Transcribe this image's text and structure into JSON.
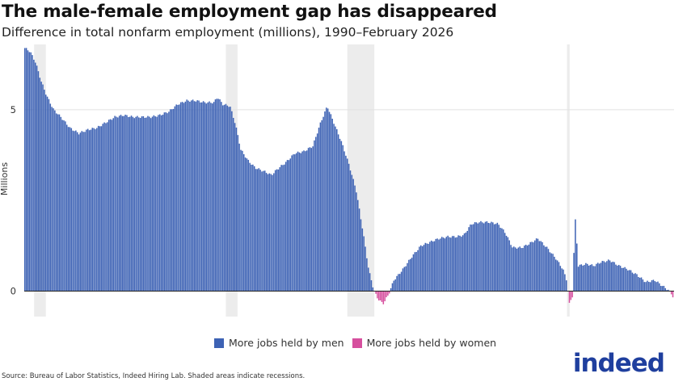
{
  "title": "The male-female employment gap has disappeared",
  "subtitle": "Difference in total nonfarm employment (millions), 1990–February 2026",
  "source": "Source: Bureau of Labor Statistics, Indeed Hiring Lab. Shaded areas indicate recessions.",
  "logo": "indeed",
  "colors": {
    "men": "#3d62b4",
    "women": "#d64f9e",
    "recession": "#ececec",
    "grid": "#e2e2e2"
  },
  "chart_data": {
    "type": "bar",
    "ylabel": "Millions",
    "ylim": [
      -0.7,
      6.8
    ],
    "yticks": [
      0,
      5
    ],
    "xlim": [
      1990.0,
      2026.1
    ],
    "xticks": [
      1993,
      1997,
      2001,
      2005,
      2009,
      2013,
      2017,
      2021,
      2025
    ],
    "grid": "horizontal",
    "legend_position": "bottom-center",
    "legend": [
      {
        "label": "More jobs held by men",
        "color_key": "men"
      },
      {
        "label": "More jobs held by women",
        "color_key": "women"
      }
    ],
    "recessions": [
      [
        1990.55,
        1991.2
      ],
      [
        2001.2,
        2001.85
      ],
      [
        2007.95,
        2009.45
      ],
      [
        2020.15,
        2020.3
      ]
    ],
    "series_anchors": [
      [
        1990.0,
        6.7
      ],
      [
        1990.3,
        6.6
      ],
      [
        1990.6,
        6.3
      ],
      [
        1990.9,
        5.8
      ],
      [
        1991.2,
        5.4
      ],
      [
        1991.6,
        5.0
      ],
      [
        1992.0,
        4.8
      ],
      [
        1992.5,
        4.5
      ],
      [
        1993.0,
        4.35
      ],
      [
        1993.5,
        4.45
      ],
      [
        1994.0,
        4.5
      ],
      [
        1994.5,
        4.65
      ],
      [
        1995.0,
        4.8
      ],
      [
        1995.5,
        4.85
      ],
      [
        1996.0,
        4.8
      ],
      [
        1996.5,
        4.8
      ],
      [
        1997.0,
        4.8
      ],
      [
        1997.5,
        4.85
      ],
      [
        1998.0,
        4.95
      ],
      [
        1998.5,
        5.15
      ],
      [
        1999.0,
        5.25
      ],
      [
        1999.5,
        5.25
      ],
      [
        2000.0,
        5.2
      ],
      [
        2000.5,
        5.2
      ],
      [
        2000.7,
        5.35
      ],
      [
        2001.0,
        5.15
      ],
      [
        2001.4,
        5.1
      ],
      [
        2001.7,
        4.6
      ],
      [
        2002.0,
        3.9
      ],
      [
        2002.4,
        3.6
      ],
      [
        2002.8,
        3.4
      ],
      [
        2003.3,
        3.3
      ],
      [
        2003.7,
        3.2
      ],
      [
        2004.0,
        3.35
      ],
      [
        2004.5,
        3.55
      ],
      [
        2005.0,
        3.8
      ],
      [
        2005.5,
        3.85
      ],
      [
        2006.0,
        4.0
      ],
      [
        2006.4,
        4.6
      ],
      [
        2006.8,
        5.1
      ],
      [
        2007.2,
        4.6
      ],
      [
        2007.6,
        4.1
      ],
      [
        2008.0,
        3.5
      ],
      [
        2008.4,
        2.8
      ],
      [
        2008.8,
        1.6
      ],
      [
        2009.1,
        0.6
      ],
      [
        2009.4,
        0.0
      ],
      [
        2009.6,
        -0.2
      ],
      [
        2009.9,
        -0.35
      ],
      [
        2010.2,
        -0.1
      ],
      [
        2010.5,
        0.3
      ],
      [
        2011.0,
        0.6
      ],
      [
        2011.5,
        0.95
      ],
      [
        2012.0,
        1.25
      ],
      [
        2012.5,
        1.35
      ],
      [
        2013.0,
        1.45
      ],
      [
        2013.5,
        1.5
      ],
      [
        2014.0,
        1.5
      ],
      [
        2014.4,
        1.55
      ],
      [
        2014.8,
        1.85
      ],
      [
        2015.2,
        1.9
      ],
      [
        2015.8,
        1.9
      ],
      [
        2016.3,
        1.85
      ],
      [
        2016.7,
        1.6
      ],
      [
        2017.1,
        1.2
      ],
      [
        2017.6,
        1.2
      ],
      [
        2018.0,
        1.3
      ],
      [
        2018.5,
        1.45
      ],
      [
        2019.0,
        1.2
      ],
      [
        2019.5,
        0.9
      ],
      [
        2019.9,
        0.6
      ],
      [
        2020.1,
        0.3
      ],
      [
        2020.25,
        -0.35
      ],
      [
        2020.45,
        -0.1
      ],
      [
        2020.55,
        2.2
      ],
      [
        2020.75,
        0.7
      ],
      [
        2021.2,
        0.75
      ],
      [
        2021.6,
        0.7
      ],
      [
        2022.0,
        0.8
      ],
      [
        2022.5,
        0.85
      ],
      [
        2023.0,
        0.7
      ],
      [
        2023.5,
        0.6
      ],
      [
        2024.0,
        0.45
      ],
      [
        2024.5,
        0.25
      ],
      [
        2025.0,
        0.3
      ],
      [
        2025.4,
        0.15
      ],
      [
        2025.7,
        0.05
      ],
      [
        2025.9,
        -0.05
      ],
      [
        2026.05,
        -0.2
      ],
      [
        2026.1,
        -0.02
      ]
    ]
  }
}
